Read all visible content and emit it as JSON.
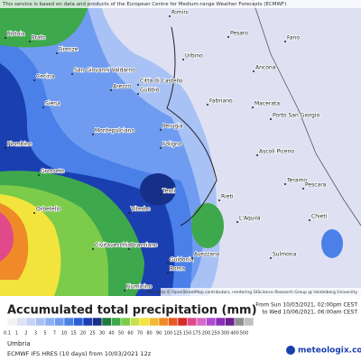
{
  "header": {
    "notice": "This service is based on data and products of the European Centre for Medium-range Weather Forecasts (ECMWF)"
  },
  "map": {
    "places": [
      "Rimini",
      "Pesaro",
      "Prato",
      "Pistoia",
      "Firenze",
      "Urbino",
      "Fano",
      "Ancona",
      "San Giovanni Valdarno",
      "Cecina",
      "Siena",
      "Arezzo",
      "Città di Castello",
      "Gubbio",
      "Fabriano",
      "Macerata",
      "Porto San Giorgio",
      "Perugia",
      "Montepulciano",
      "Foligno",
      "Ascoli Piceno",
      "Piombino",
      "Grosseto",
      "Teramo",
      "Orbetello",
      "Viterbo",
      "Terni",
      "Rieti",
      "Pescara",
      "L'Aquila",
      "Chieti",
      "Civitavecchia",
      "Bracciano",
      "Guidonia",
      "Roma",
      "Avezzano",
      "Sulmona",
      "Fiumicino"
    ],
    "attribution": "Map data © OpenStreetMap contributors, rendering GIScience Research Group @ Heidelberg University"
  },
  "legend": {
    "title": "Accumulated total precipitation (mm)",
    "items": [
      {
        "value": 0.1,
        "color": "#f2f2f2"
      },
      {
        "value": 1,
        "color": "#dfe1f3"
      },
      {
        "value": 2,
        "color": "#c5d3f5"
      },
      {
        "value": 3,
        "color": "#a9c2f5"
      },
      {
        "value": 5,
        "color": "#8cb0f3"
      },
      {
        "value": 7,
        "color": "#6f9cf0"
      },
      {
        "value": 10,
        "color": "#4a80e8"
      },
      {
        "value": 15,
        "color": "#2a5fd6"
      },
      {
        "value": 20,
        "color": "#1a3fb0"
      },
      {
        "value": 25,
        "color": "#16308a"
      },
      {
        "value": 30,
        "color": "#1f7a3a"
      },
      {
        "value": 40,
        "color": "#3ea84c"
      },
      {
        "value": 50,
        "color": "#7ccb4a"
      },
      {
        "value": 60,
        "color": "#c8e04a"
      },
      {
        "value": 70,
        "color": "#f2e43c"
      },
      {
        "value": 80,
        "color": "#f5b830"
      },
      {
        "value": 90,
        "color": "#f08a28"
      },
      {
        "value": 100,
        "color": "#e85a24"
      },
      {
        "value": 125,
        "color": "#d82828"
      },
      {
        "value": 150,
        "color": "#e04a8a"
      },
      {
        "value": 175,
        "color": "#d86ac8"
      },
      {
        "value": 200,
        "color": "#b04ad0"
      },
      {
        "value": 250,
        "color": "#8a30b8"
      },
      {
        "value": 300,
        "color": "#6a2090"
      },
      {
        "value": 400,
        "color": "#909090"
      },
      {
        "value": 500,
        "color": "#c0c0c0"
      }
    ]
  },
  "footer": {
    "from": "From Sun 10/03/2021, 02:00pm CEST",
    "to": "to Wed 10/06/2021, 06:00am CEST",
    "region": "Umbria",
    "model": "ECMWF IFS HRES (10 days) from 10/03/2021 12z",
    "brand": "meteologix.com"
  }
}
